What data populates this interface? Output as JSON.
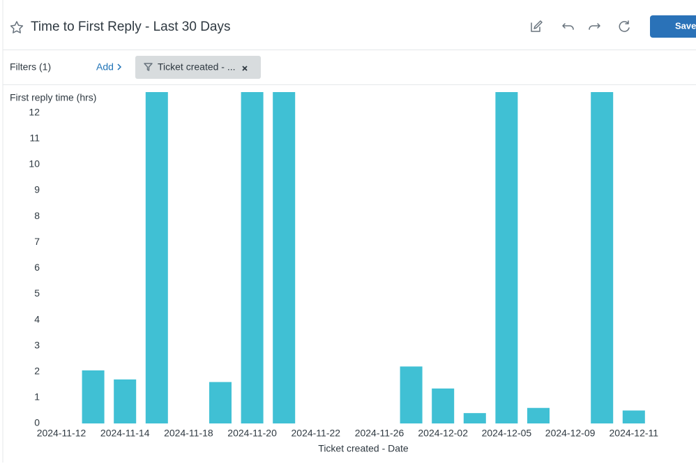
{
  "header": {
    "title": "Time to First Reply - Last 30 Days",
    "save_button": "Save"
  },
  "filters": {
    "label": "Filters (1)",
    "add": "Add",
    "chip": "Ticket created - ..."
  },
  "chart_data": {
    "type": "bar",
    "y_label": "First reply time (hrs)",
    "x_label": "Ticket created - Date",
    "categories": [
      "2024-11-12",
      null,
      "2024-11-14",
      null,
      "2024-11-18",
      null,
      "2024-11-20",
      null,
      "2024-11-22",
      null,
      "2024-11-26",
      null,
      "2024-12-02",
      null,
      "2024-12-05",
      null,
      "2024-12-09",
      null,
      "2024-12-11"
    ],
    "values": [
      null,
      2.05,
      1.7,
      12.8,
      null,
      1.6,
      12.8,
      12.8,
      null,
      null,
      null,
      2.2,
      1.35,
      0.4,
      12.8,
      0.6,
      null,
      12.8,
      0.5
    ],
    "color": "#40c0d4",
    "ylim": [
      0,
      12.8
    ],
    "yticks": [
      0,
      1,
      2,
      3,
      4,
      5,
      6,
      7,
      8,
      9,
      10,
      11,
      12
    ]
  }
}
